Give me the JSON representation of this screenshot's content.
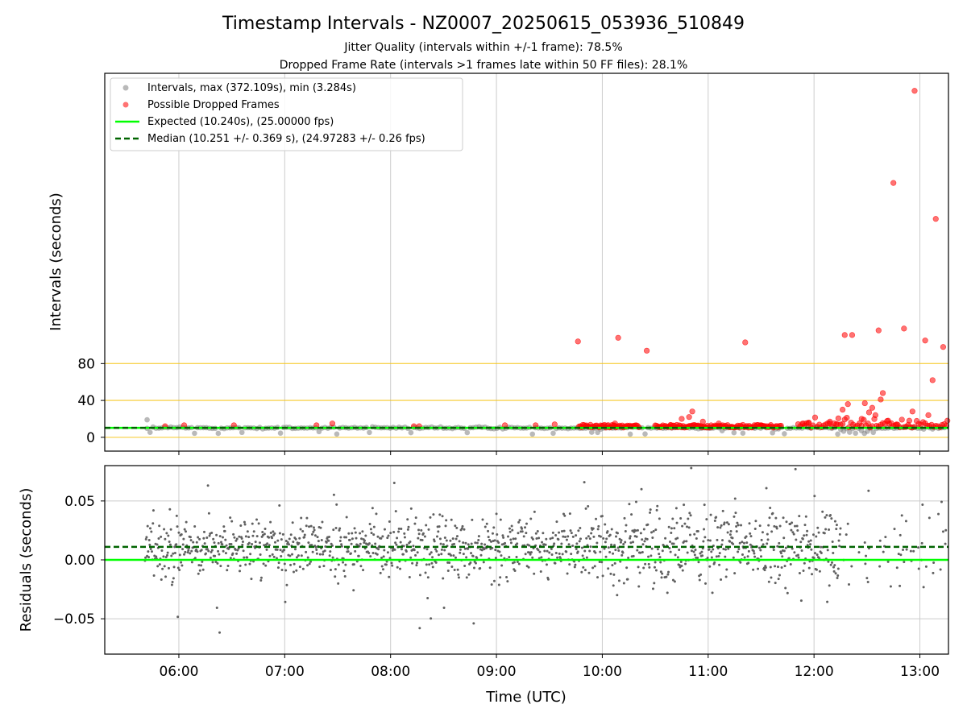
{
  "title": "Timestamp Intervals - NZ0007_20250615_053936_510849",
  "subtitle_1": "Jitter Quality (intervals within +/-1 frame): 78.5%",
  "subtitle_2": "Dropped Frame Rate (intervals >1 frames late within 50 FF files): 28.1%",
  "colors": {
    "interval_points": "#808080",
    "dropped_points": "#ff0000",
    "expected_line": "#00ff00",
    "median_line": "#006400",
    "threshold_lines": "#f5c518",
    "grid": "#cccccc",
    "residual_points": "#606060"
  },
  "chart_data": [
    {
      "type": "scatter",
      "panel": "top",
      "ylabel": "Intervals (seconds)",
      "x_axis": "time UTC (hours)",
      "xlim": [
        5.3,
        13.27
      ],
      "ylim": [
        -15,
        395
      ],
      "yticks": [
        0,
        40,
        80
      ],
      "hlines": [
        0,
        40,
        80
      ],
      "grid": "x only",
      "legend_position": "top-left",
      "legend": [
        "Intervals, max (372.109s), min (3.284s)",
        "Possible Dropped Frames",
        "Expected (10.240s), (25.00000 fps)",
        "Median (10.251 +/- 0.369 s), (24.97283 +/- 0.26 fps)"
      ],
      "expected_interval": 10.24,
      "median_interval": 10.251,
      "max_interval": 372.109,
      "min_interval": 3.284,
      "regular_intervals_shown": "dense band 5.7–13.2 h between 3.3 s and ~20 s, mostly at 10.24 s",
      "dropped_frames": [
        {
          "t": 5.87,
          "v": 12
        },
        {
          "t": 6.05,
          "v": 13
        },
        {
          "t": 6.52,
          "v": 13
        },
        {
          "t": 7.3,
          "v": 13
        },
        {
          "t": 7.45,
          "v": 15
        },
        {
          "t": 8.22,
          "v": 12
        },
        {
          "t": 8.27,
          "v": 12
        },
        {
          "t": 9.08,
          "v": 13
        },
        {
          "t": 9.37,
          "v": 13
        },
        {
          "t": 9.55,
          "v": 14
        },
        {
          "t": 9.77,
          "v": 104
        },
        {
          "t": 10.15,
          "v": 108
        },
        {
          "t": 10.12,
          "v": 15
        },
        {
          "t": 10.42,
          "v": 94
        },
        {
          "t": 10.65,
          "v": 13
        },
        {
          "t": 10.75,
          "v": 20
        },
        {
          "t": 10.82,
          "v": 22
        },
        {
          "t": 10.85,
          "v": 28
        },
        {
          "t": 10.95,
          "v": 17
        },
        {
          "t": 11.1,
          "v": 15
        },
        {
          "t": 11.35,
          "v": 103
        },
        {
          "t": 11.5,
          "v": 13
        },
        {
          "t": 11.9,
          "v": 15
        },
        {
          "t": 11.95,
          "v": 16
        },
        {
          "t": 12.15,
          "v": 17
        },
        {
          "t": 12.22,
          "v": 14
        },
        {
          "t": 12.27,
          "v": 30
        },
        {
          "t": 12.29,
          "v": 111
        },
        {
          "t": 12.32,
          "v": 36
        },
        {
          "t": 12.36,
          "v": 111
        },
        {
          "t": 12.45,
          "v": 20
        },
        {
          "t": 12.48,
          "v": 37
        },
        {
          "t": 12.52,
          "v": 27
        },
        {
          "t": 12.55,
          "v": 32
        },
        {
          "t": 12.58,
          "v": 24
        },
        {
          "t": 12.61,
          "v": 116
        },
        {
          "t": 12.63,
          "v": 41
        },
        {
          "t": 12.65,
          "v": 48
        },
        {
          "t": 12.7,
          "v": 18
        },
        {
          "t": 12.75,
          "v": 276
        },
        {
          "t": 12.78,
          "v": 14
        },
        {
          "t": 12.85,
          "v": 118
        },
        {
          "t": 12.9,
          "v": 18
        },
        {
          "t": 12.93,
          "v": 28
        },
        {
          "t": 12.95,
          "v": 376
        },
        {
          "t": 13.05,
          "v": 105
        },
        {
          "t": 13.08,
          "v": 24
        },
        {
          "t": 13.12,
          "v": 62
        },
        {
          "t": 13.15,
          "v": 237
        },
        {
          "t": 13.22,
          "v": 98
        },
        {
          "t": 13.26,
          "v": 18
        }
      ]
    },
    {
      "type": "scatter",
      "panel": "bottom",
      "xlabel": "Time (UTC)",
      "ylabel": "Residuals (seconds)",
      "xlim": [
        5.3,
        13.27
      ],
      "ylim": [
        -0.08,
        0.08
      ],
      "yticks": [
        -0.05,
        0.0,
        0.05
      ],
      "xticks": [
        6,
        7,
        8,
        9,
        10,
        11,
        12,
        13
      ],
      "xtick_labels": [
        "06:00",
        "07:00",
        "08:00",
        "09:00",
        "10:00",
        "11:00",
        "12:00",
        "13:00"
      ],
      "ytick_labels": [
        "−0.05",
        "0.00",
        "0.05"
      ],
      "grid": "both",
      "expected_residual": 0.0,
      "median_residual": 0.011,
      "residuals_shown": "~1500 points 5.7–13.2 h, centred near +0.01 s, mostly within ±0.035 s, scatter widens after 10:00"
    }
  ]
}
